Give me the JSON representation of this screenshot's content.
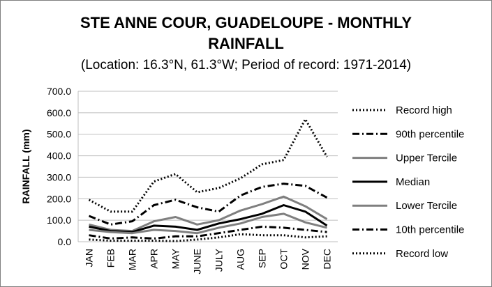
{
  "chart_data": {
    "type": "line",
    "title": "STE ANNE COUR, GUADELOUPE - MONTHLY RAINFALL",
    "title_line1": "STE ANNE COUR, GUADELOUPE - MONTHLY",
    "title_line2": "RAINFALL",
    "subtitle": "(Location: 16.3°N, 61.3°W; Period of record: 1971-2014)",
    "xlabel": "",
    "ylabel": "RAINFALL (mm)",
    "ylim": [
      0,
      700
    ],
    "yticks": [
      "0.0",
      "100.0",
      "200.0",
      "300.0",
      "400.0",
      "500.0",
      "600.0",
      "700.0"
    ],
    "categories": [
      "JAN",
      "FEB",
      "MAR",
      "APR",
      "MAY",
      "JUNE",
      "JULY",
      "AUG",
      "SEP",
      "OCT",
      "NOV",
      "DEC"
    ],
    "grid": true,
    "legend": "right",
    "series": [
      {
        "name": "Record high",
        "color": "#000000",
        "style": "dotted",
        "values": [
          195,
          140,
          140,
          280,
          315,
          230,
          250,
          295,
          360,
          380,
          570,
          395
        ]
      },
      {
        "name": "90th percentile",
        "color": "#000000",
        "style": "dashdot",
        "values": [
          120,
          80,
          95,
          170,
          195,
          160,
          140,
          215,
          255,
          270,
          260,
          205
        ]
      },
      {
        "name": "Upper Tercile",
        "color": "#7f7f7f",
        "style": "solid",
        "values": [
          80,
          55,
          50,
          95,
          115,
          80,
          100,
          145,
          175,
          210,
          165,
          105
        ]
      },
      {
        "name": "Median",
        "color": "#000000",
        "style": "solid",
        "values": [
          70,
          50,
          45,
          75,
          70,
          55,
          85,
          105,
          130,
          170,
          140,
          75
        ]
      },
      {
        "name": "Lower Tercile",
        "color": "#7f7f7f",
        "style": "solid",
        "values": [
          55,
          45,
          40,
          55,
          50,
          40,
          65,
          85,
          115,
          130,
          90,
          65
        ]
      },
      {
        "name": "10th percentile",
        "color": "#000000",
        "style": "dashdot",
        "values": [
          30,
          15,
          20,
          15,
          25,
          25,
          40,
          55,
          70,
          65,
          55,
          45
        ]
      },
      {
        "name": "Record low",
        "color": "#000000",
        "style": "dotted",
        "values": [
          10,
          5,
          5,
          5,
          3,
          10,
          20,
          35,
          30,
          30,
          20,
          25
        ]
      }
    ]
  }
}
